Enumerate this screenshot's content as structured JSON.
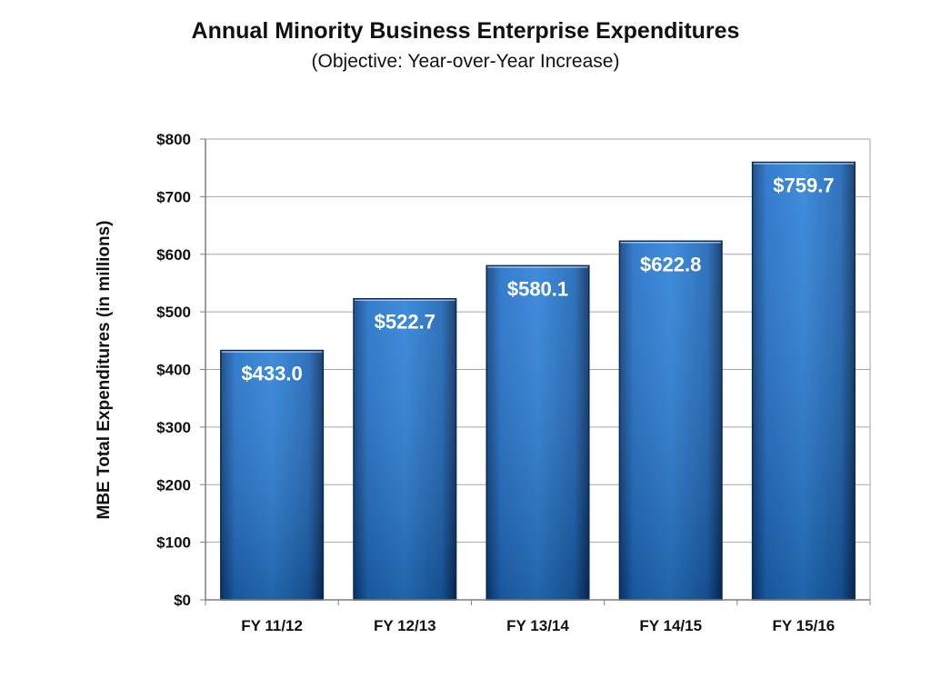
{
  "chart_data": {
    "type": "bar",
    "title": "Annual Minority Business Enterprise Expenditures",
    "subtitle": "(Objective: Year-over-Year Increase)",
    "xlabel": "",
    "ylabel": "MBE Total Expenditures (in millions)",
    "categories": [
      "FY 11/12",
      "FY 12/13",
      "FY 13/14",
      "FY 14/15",
      "FY 15/16"
    ],
    "values": [
      433.0,
      522.7,
      580.1,
      622.8,
      759.7
    ],
    "data_labels": [
      "$433.0",
      "$522.7",
      "$580.1",
      "$622.8",
      "$759.7"
    ],
    "ylim": [
      0,
      800
    ],
    "yticks": [
      0,
      100,
      200,
      300,
      400,
      500,
      600,
      700,
      800
    ],
    "ytick_labels": [
      "$0",
      "$100",
      "$200",
      "$300",
      "$400",
      "$500",
      "$600",
      "$700",
      "$800"
    ],
    "grid": true,
    "legend": "none",
    "bar_color": "#1f6fc8"
  }
}
